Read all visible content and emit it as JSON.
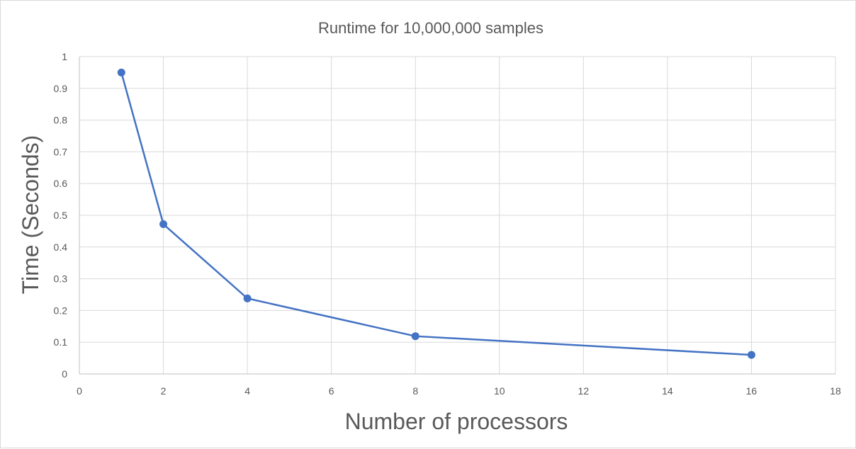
{
  "chart_data": {
    "type": "scatter",
    "title": "Runtime for 10,000,000 samples",
    "xlabel": "Number of processors",
    "ylabel": "Time (Seconds)",
    "xlim": [
      0,
      18
    ],
    "ylim": [
      0,
      1
    ],
    "xticks": [
      "0",
      "2",
      "4",
      "6",
      "8",
      "10",
      "12",
      "14",
      "16",
      "18"
    ],
    "yticks": [
      "0",
      "0.1",
      "0.2",
      "0.3",
      "0.4",
      "0.5",
      "0.6",
      "0.7",
      "0.8",
      "0.9",
      "1"
    ],
    "grid": true,
    "legend": "none",
    "series": [
      {
        "color": "#4472c4",
        "x": [
          1,
          2,
          4,
          8,
          16
        ],
        "y": [
          0.95,
          0.472,
          0.238,
          0.119,
          0.06
        ]
      }
    ]
  }
}
